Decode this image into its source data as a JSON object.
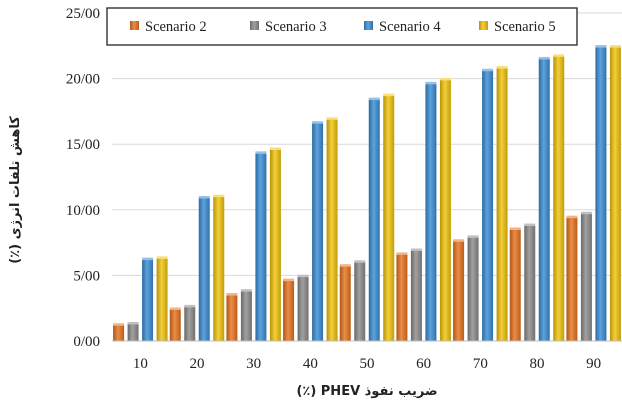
{
  "chart_data": {
    "type": "bar",
    "title": "",
    "xlabel": "ضریب نفوذ PHEV (٪)",
    "ylabel": "کاهش تلفات انرژی (٪)",
    "categories": [
      "10",
      "20",
      "30",
      "40",
      "50",
      "60",
      "70",
      "80",
      "90"
    ],
    "ylim": [
      0,
      25
    ],
    "yticks": [
      "0/00",
      "5/00",
      "10/00",
      "15/00",
      "20/00",
      "25/00"
    ],
    "grid": "horizontal",
    "legend_position": "top",
    "series": [
      {
        "name": "Scenario 2",
        "color": "#E8741E",
        "values": [
          1.2,
          2.4,
          3.5,
          4.6,
          5.7,
          6.6,
          7.6,
          8.5,
          9.4
        ]
      },
      {
        "name": "Scenario 3",
        "color": "#8C8C8C",
        "values": [
          1.3,
          2.6,
          3.8,
          4.9,
          6.0,
          6.9,
          7.9,
          8.8,
          9.7
        ]
      },
      {
        "name": "Scenario 4",
        "color": "#3B8ED6",
        "values": [
          6.2,
          10.9,
          14.3,
          16.6,
          18.4,
          19.6,
          20.6,
          21.5,
          22.4
        ]
      },
      {
        "name": "Scenario 5",
        "color": "#F2C40C",
        "values": [
          6.3,
          11.0,
          14.6,
          16.9,
          18.7,
          19.9,
          20.8,
          21.7,
          22.4
        ]
      }
    ]
  }
}
